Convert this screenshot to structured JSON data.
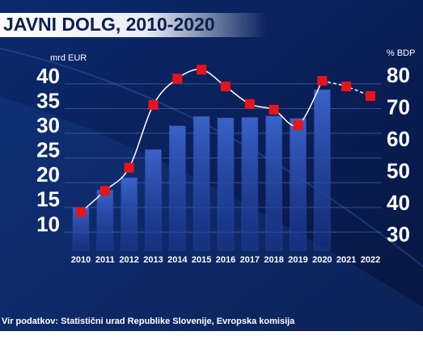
{
  "chart_data": {
    "type": "bar-line",
    "title": "JAVNI DOLG, 2010-2020",
    "y_label": "mrd EUR",
    "y2_label": "% BDP",
    "source": "Vir podatkov: Statistični urad Republike Slovenije, Evropska komisija",
    "categories": [
      "2010",
      "2011",
      "2012",
      "2013",
      "2014",
      "2015",
      "2016",
      "2017",
      "2018",
      "2019",
      "2020",
      "2021",
      "2022"
    ],
    "series": [
      {
        "name": "mrd EUR",
        "type": "bar",
        "color": "#2c4fb0",
        "values": [
          13.7,
          17.2,
          19.7,
          25.4,
          30.2,
          32.1,
          31.8,
          31.9,
          32.2,
          31.7,
          37.5,
          null,
          null
        ]
      },
      {
        "name": "% BDP",
        "type": "line",
        "axis": "y2",
        "color": "#ffffff",
        "marker_color": "#e8141c",
        "dashed_from": "2020",
        "values": [
          37.5,
          44.2,
          51.5,
          71.2,
          79.5,
          82.3,
          77.0,
          71.5,
          69.7,
          64.9,
          78.8,
          77.0,
          74.0
        ]
      }
    ],
    "ylim": [
      5,
      47.5
    ],
    "yticks": [
      10,
      15,
      20,
      25,
      30,
      35,
      40
    ],
    "y2lim": [
      25.5,
      91.5
    ],
    "y2ticks": [
      30,
      40,
      50,
      60,
      70,
      80
    ],
    "grid": true
  }
}
